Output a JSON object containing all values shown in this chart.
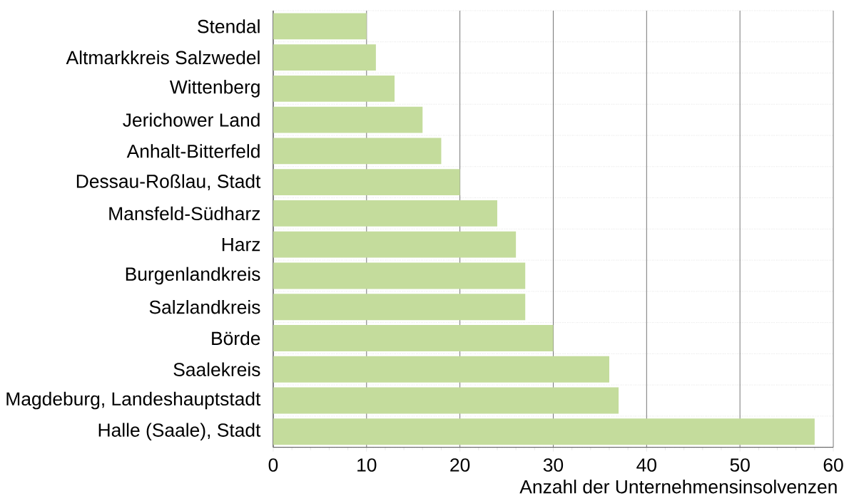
{
  "chart_data": {
    "type": "bar",
    "orientation": "horizontal",
    "categories": [
      "Stendal",
      "Altmarkkreis Salzwedel",
      "Wittenberg",
      "Jerichower Land",
      "Anhalt-Bitterfeld",
      "Dessau-Roßlau, Stadt",
      "Mansfeld-Südharz",
      "Harz",
      "Burgenlandkreis",
      "Salzlandkreis",
      "Börde",
      "Saalekreis",
      "Magdeburg, Landeshauptstadt",
      "Halle (Saale), Stadt"
    ],
    "values": [
      10,
      11,
      13,
      16,
      18,
      20,
      24,
      26,
      27,
      27,
      30,
      36,
      37,
      58
    ],
    "color": "#c4dc9c",
    "xlabel": "Anzahl der Unternehmensinsolvenzen",
    "xlim": [
      0,
      60
    ],
    "xticks": [
      0,
      10,
      20,
      30,
      40,
      50,
      60
    ],
    "grid": true
  }
}
